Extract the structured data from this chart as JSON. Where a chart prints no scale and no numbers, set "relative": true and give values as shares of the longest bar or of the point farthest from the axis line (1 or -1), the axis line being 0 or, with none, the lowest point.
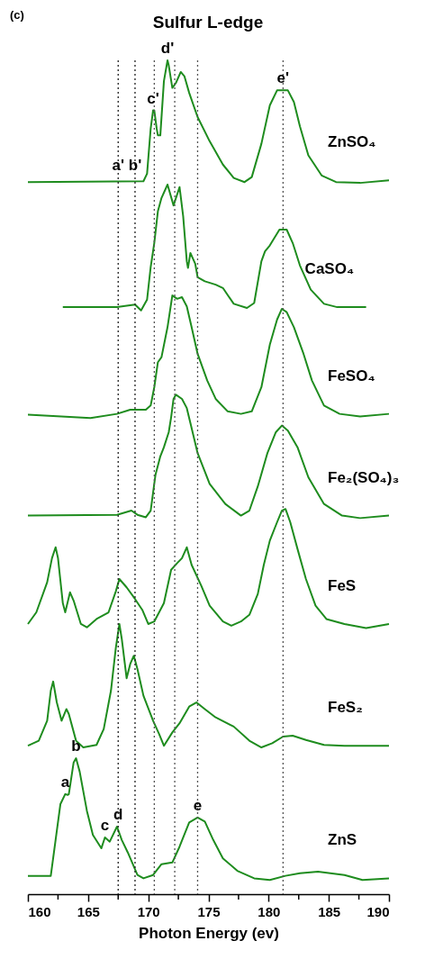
{
  "chart_data": {
    "type": "line",
    "title": "Sulfur L-edge",
    "xlabel": "Photon Energy (ev)",
    "relative": true,
    "xlim": [
      160,
      190
    ],
    "xticks": [
      160,
      {
        "value": 162.5,
        "label": null
      },
      165,
      {
        "value": 167.5,
        "label": null
      },
      170,
      {
        "value": 172.5,
        "label": null
      },
      175,
      {
        "value": 177.5,
        "label": null
      },
      180,
      {
        "value": 182.5,
        "label": null
      },
      185,
      {
        "value": 187.5,
        "label": null
      },
      190
    ],
    "grid": false,
    "marker": "none",
    "line_style": "solid",
    "series": [
      {
        "name": "ZnSO₄",
        "color": "#1e8c1e",
        "x": [
          160.0,
          169.6,
          169.9,
          170.2,
          170.4,
          170.5,
          170.7,
          170.8,
          171.0,
          171.3,
          171.6,
          171.7,
          172.0,
          172.3,
          172.7,
          173.0,
          173.4,
          174.1,
          175.1,
          176.2,
          177.1,
          178.0,
          178.6,
          179.4,
          180.1,
          180.7,
          181.6,
          182.1,
          182.6,
          183.3,
          184.4,
          185.6,
          187.6,
          190.0
        ],
        "values": [
          0.854,
          0.855,
          0.864,
          0.918,
          0.94,
          0.94,
          0.918,
          0.91,
          0.91,
          0.975,
          1.0,
          0.994,
          0.967,
          0.973,
          0.986,
          0.981,
          0.961,
          0.932,
          0.903,
          0.875,
          0.859,
          0.854,
          0.86,
          0.9,
          0.946,
          0.964,
          0.964,
          0.95,
          0.921,
          0.886,
          0.862,
          0.854,
          0.853,
          0.856
        ]
      },
      {
        "name": "CaSO₄",
        "color": "#1e8c1e",
        "x": [
          162.9,
          167.4,
          168.9,
          169.4,
          169.9,
          170.2,
          170.5,
          170.8,
          171.1,
          171.6,
          172.1,
          172.6,
          172.9,
          173.2,
          173.3,
          173.5,
          173.9,
          174.1,
          174.7,
          175.6,
          176.2,
          177.1,
          178.2,
          178.8,
          179.4,
          179.7,
          180.1,
          180.9,
          181.5,
          182.0,
          182.6,
          183.5,
          184.6,
          185.7,
          188.1
        ],
        "values": [
          0.704,
          0.704,
          0.707,
          0.7,
          0.713,
          0.752,
          0.781,
          0.819,
          0.835,
          0.851,
          0.826,
          0.848,
          0.813,
          0.759,
          0.751,
          0.769,
          0.756,
          0.74,
          0.735,
          0.731,
          0.727,
          0.708,
          0.703,
          0.709,
          0.759,
          0.771,
          0.778,
          0.797,
          0.797,
          0.781,
          0.754,
          0.725,
          0.708,
          0.704,
          0.704
        ]
      },
      {
        "name": "FeSO₄",
        "color": "#1e8c1e",
        "x": [
          160.0,
          165.2,
          167.4,
          168.5,
          169.8,
          170.2,
          170.5,
          170.8,
          171.1,
          171.6,
          172.0,
          172.4,
          172.8,
          173.2,
          173.6,
          174.1,
          174.9,
          175.6,
          176.6,
          177.7,
          178.6,
          179.4,
          180.1,
          180.7,
          181.1,
          181.5,
          182.1,
          182.9,
          183.6,
          184.6,
          185.9,
          187.6,
          190.0
        ],
        "values": [
          0.575,
          0.571,
          0.576,
          0.581,
          0.581,
          0.586,
          0.608,
          0.638,
          0.644,
          0.68,
          0.718,
          0.714,
          0.716,
          0.705,
          0.68,
          0.648,
          0.616,
          0.594,
          0.579,
          0.576,
          0.579,
          0.608,
          0.659,
          0.689,
          0.702,
          0.698,
          0.68,
          0.648,
          0.616,
          0.586,
          0.576,
          0.573,
          0.576
        ]
      },
      {
        "name": "Fe₂(SO₄)₃",
        "color": "#1e8c1e",
        "x": [
          160.0,
          167.4,
          168.6,
          169.1,
          169.8,
          170.2,
          170.6,
          171.0,
          171.3,
          171.7,
          171.9,
          172.1,
          172.3,
          172.8,
          173.2,
          173.5,
          174.1,
          175.1,
          176.4,
          177.7,
          178.4,
          179.1,
          179.9,
          180.6,
          181.1,
          181.6,
          182.4,
          183.3,
          184.6,
          186.1,
          187.6,
          190.0
        ],
        "values": [
          0.454,
          0.455,
          0.46,
          0.455,
          0.452,
          0.46,
          0.503,
          0.525,
          0.536,
          0.554,
          0.572,
          0.594,
          0.599,
          0.594,
          0.583,
          0.565,
          0.529,
          0.492,
          0.468,
          0.454,
          0.46,
          0.489,
          0.529,
          0.554,
          0.562,
          0.556,
          0.536,
          0.5,
          0.468,
          0.454,
          0.451,
          0.454
        ]
      },
      {
        "name": "FeS",
        "color": "#1e8c1e",
        "x": [
          160.0,
          160.7,
          161.6,
          162.0,
          162.3,
          162.5,
          162.9,
          163.1,
          163.5,
          163.8,
          164.4,
          164.9,
          165.7,
          166.7,
          167.3,
          167.6,
          168.2,
          168.9,
          169.5,
          170.0,
          170.5,
          171.3,
          171.9,
          172.4,
          172.8,
          173.2,
          173.6,
          174.4,
          175.1,
          176.2,
          176.9,
          177.7,
          178.4,
          179.1,
          179.6,
          180.1,
          180.7,
          181.1,
          181.4,
          181.8,
          182.4,
          183.1,
          183.9,
          184.8,
          186.3,
          188.1,
          190.0
        ],
        "values": [
          0.324,
          0.338,
          0.374,
          0.403,
          0.416,
          0.403,
          0.349,
          0.338,
          0.362,
          0.352,
          0.324,
          0.32,
          0.33,
          0.338,
          0.363,
          0.378,
          0.368,
          0.354,
          0.341,
          0.324,
          0.327,
          0.349,
          0.389,
          0.397,
          0.403,
          0.416,
          0.395,
          0.37,
          0.346,
          0.327,
          0.322,
          0.327,
          0.335,
          0.36,
          0.395,
          0.424,
          0.446,
          0.46,
          0.462,
          0.446,
          0.414,
          0.378,
          0.346,
          0.33,
          0.324,
          0.319,
          0.324
        ]
      },
      {
        "name": "FeS₂",
        "color": "#1e8c1e",
        "x": [
          160.0,
          160.9,
          161.6,
          161.9,
          162.1,
          162.4,
          162.8,
          163.2,
          163.4,
          164.0,
          164.6,
          165.7,
          166.3,
          166.9,
          167.3,
          167.6,
          167.8,
          168.2,
          168.5,
          168.8,
          169.1,
          169.6,
          170.4,
          170.9,
          171.3,
          172.0,
          172.6,
          173.4,
          174.0,
          174.7,
          175.6,
          177.1,
          178.4,
          179.4,
          180.3,
          181.2,
          182.0,
          183.1,
          184.6,
          186.3,
          190.0
        ],
        "values": [
          0.178,
          0.184,
          0.208,
          0.244,
          0.255,
          0.23,
          0.208,
          0.222,
          0.216,
          0.184,
          0.176,
          0.179,
          0.198,
          0.244,
          0.295,
          0.324,
          0.306,
          0.259,
          0.276,
          0.286,
          0.27,
          0.238,
          0.208,
          0.192,
          0.178,
          0.194,
          0.205,
          0.225,
          0.23,
          0.222,
          0.212,
          0.201,
          0.184,
          0.176,
          0.181,
          0.189,
          0.19,
          0.185,
          0.179,
          0.178,
          0.178
        ]
      },
      {
        "name": "ZnS",
        "color": "#1e8c1e",
        "x": [
          160.0,
          161.9,
          162.3,
          162.7,
          163.1,
          163.3,
          163.4,
          163.8,
          164.0,
          164.3,
          164.9,
          165.4,
          166.1,
          166.4,
          166.8,
          167.4,
          167.8,
          168.3,
          169.1,
          169.6,
          170.4,
          171.1,
          172.0,
          172.6,
          173.4,
          174.1,
          174.7,
          175.4,
          176.2,
          177.4,
          178.8,
          180.1,
          181.4,
          182.6,
          184.1,
          186.3,
          187.8,
          190.0
        ],
        "values": [
          0.022,
          0.022,
          0.065,
          0.108,
          0.12,
          0.119,
          0.12,
          0.158,
          0.163,
          0.147,
          0.1,
          0.071,
          0.055,
          0.068,
          0.063,
          0.081,
          0.065,
          0.05,
          0.023,
          0.019,
          0.023,
          0.036,
          0.038,
          0.057,
          0.086,
          0.092,
          0.087,
          0.065,
          0.043,
          0.028,
          0.019,
          0.017,
          0.022,
          0.025,
          0.027,
          0.023,
          0.017,
          0.019
        ]
      }
    ],
    "ref_lines": [
      {
        "axis": "x",
        "value": 167.5,
        "color": "#222222",
        "line_style": "dotted"
      },
      {
        "axis": "x",
        "value": 168.9,
        "color": "#222222",
        "line_style": "dotted"
      },
      {
        "axis": "x",
        "value": 170.5,
        "color": "#555555",
        "line_style": "dotted"
      },
      {
        "axis": "x",
        "value": 172.2,
        "color": "#555555",
        "line_style": "dotted"
      },
      {
        "axis": "x",
        "value": 174.1,
        "color": "#555555",
        "line_style": "dotted"
      },
      {
        "axis": "x",
        "value": 181.2,
        "color": "#555555",
        "line_style": "dotted"
      }
    ],
    "annotations": [
      "(c)",
      {
        "text": "a'",
        "x": 167.5,
        "y": 0.86
      },
      {
        "text": "b'",
        "x": 168.9,
        "y": 0.86
      },
      {
        "text": "c'",
        "x": 170.4,
        "y": 0.94
      },
      {
        "text": "d'",
        "x": 171.6,
        "y": 1.0
      },
      {
        "text": "e'",
        "x": 181.2,
        "y": 0.964
      },
      {
        "text": "a",
        "x": 163.1,
        "y": 0.12
      },
      {
        "text": "b",
        "x": 164.0,
        "y": 0.163
      },
      {
        "text": "c",
        "x": 166.4,
        "y": 0.068
      },
      {
        "text": "d",
        "x": 167.5,
        "y": 0.081
      },
      {
        "text": "e",
        "x": 174.1,
        "y": 0.092
      }
    ]
  }
}
